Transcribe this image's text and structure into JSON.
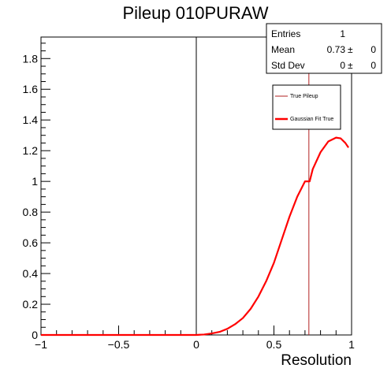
{
  "chart_data": {
    "type": "line",
    "title": "Pileup 010PURAW",
    "xlabel": "Resolution",
    "ylabel": "",
    "xlim": [
      -1,
      1
    ],
    "ylim": [
      0,
      1.94
    ],
    "x_ticks": [
      -1,
      -0.5,
      0,
      0.5,
      1
    ],
    "x_tick_labels": [
      "−1",
      "−0.5",
      "0",
      "0.5",
      "1"
    ],
    "y_ticks": [
      0,
      0.2,
      0.4,
      0.6,
      0.8,
      1,
      1.2,
      1.4,
      1.6,
      1.8
    ],
    "y_tick_labels": [
      "0",
      "0.2",
      "0.4",
      "0.6",
      "0.8",
      "1",
      "1.2",
      "1.4",
      "1.6",
      "1.8"
    ],
    "grid": false,
    "histogram": {
      "bin_low": 0.72,
      "bin_high": 0.73,
      "content": 1,
      "color": "#b22222"
    },
    "series": [
      {
        "name": "Gaussian Fit True",
        "color": "#ff0000",
        "x": [
          -1.0,
          -0.5,
          0.0,
          0.05,
          0.1,
          0.15,
          0.2,
          0.25,
          0.3,
          0.35,
          0.4,
          0.45,
          0.5,
          0.55,
          0.6,
          0.65,
          0.7,
          0.73,
          0.75,
          0.8,
          0.85,
          0.9,
          0.93,
          0.96,
          0.98
        ],
        "y": [
          0.0,
          0.0,
          0.0,
          0.003,
          0.01,
          0.02,
          0.04,
          0.07,
          0.11,
          0.17,
          0.25,
          0.35,
          0.47,
          0.62,
          0.77,
          0.9,
          1.0,
          1.0,
          1.08,
          1.19,
          1.26,
          1.285,
          1.28,
          1.25,
          1.22
        ]
      }
    ],
    "legend": {
      "position": "top-right",
      "entries": [
        {
          "label": "True Pileup",
          "color": "#b22222",
          "style": "thin"
        },
        {
          "label": "Gaussian Fit True",
          "color": "#ff0000",
          "style": "thick"
        }
      ]
    },
    "stats_box": {
      "rows": [
        {
          "label": "Entries",
          "value": "1",
          "pm": "",
          "err": ""
        },
        {
          "label": "Mean",
          "value": "0.73",
          "pm": "±",
          "err": "0"
        },
        {
          "label": "Std Dev",
          "value": "0",
          "pm": "±",
          "err": "0"
        }
      ]
    }
  }
}
